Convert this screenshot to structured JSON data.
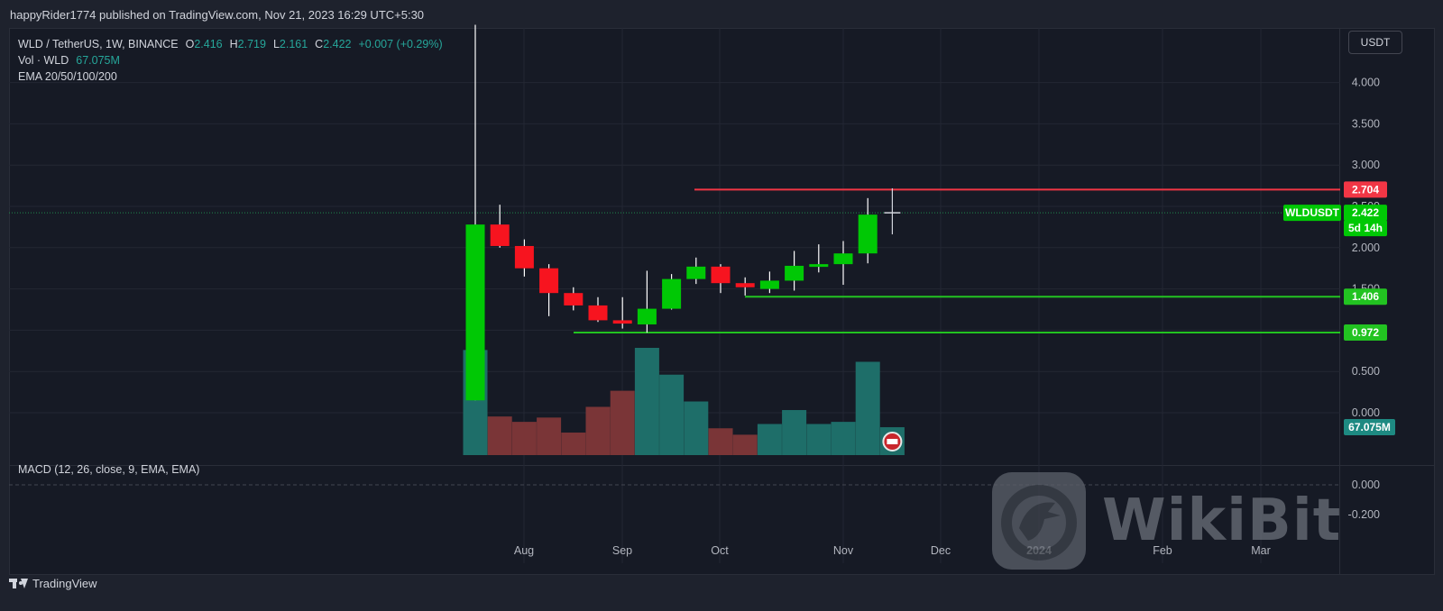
{
  "header": {
    "publish_line": "happyRider1774 published on TradingView.com, Nov 21, 2023 16:29 UTC+5:30"
  },
  "legend": {
    "symbol": "WLD / TetherUS, 1W, BINANCE",
    "o_label": "O",
    "o_value": "2.416",
    "h_label": "H",
    "h_value": "2.719",
    "l_label": "L",
    "l_value": "2.161",
    "c_label": "C",
    "c_value": "2.422",
    "change": "+0.007 (+0.29%)",
    "vol_label": "Vol · WLD",
    "vol_value": "67.075M",
    "ema_label": "EMA 20/50/100/200"
  },
  "macd_legend": "MACD (12, 26, close, 9, EMA, EMA)",
  "price_scale": {
    "currency_button": "USDT",
    "ticks": [
      "4.000",
      "3.500",
      "3.000",
      "2.500",
      "2.000",
      "1.500",
      "1.000",
      "0.500",
      "0.000"
    ],
    "macd_ticks": [
      "0.000",
      "-0.200"
    ]
  },
  "price_tags": {
    "resistance": "2.704",
    "last_symbol": "WLDUSDT",
    "last_price": "2.422",
    "countdown": "5d 14h",
    "support_1": "1.406",
    "support_2": "0.972",
    "volume": "67.075M"
  },
  "colors": {
    "up": "#00c805",
    "down": "#f7141f",
    "vol_up": "#1e6e69",
    "vol_down": "#7a3537",
    "resistance_line": "#f23645",
    "support_line": "#22c321",
    "background": "#161a25"
  },
  "time_axis": [
    "Aug",
    "Sep",
    "Oct",
    "Nov",
    "Dec",
    "2024",
    "Feb",
    "Mar"
  ],
  "footer": {
    "brand": "TradingView"
  },
  "watermark": {
    "text": "WikiBit"
  },
  "chart_data": {
    "type": "candlestick",
    "symbol": "WLD / TetherUS",
    "interval": "1W",
    "exchange": "BINANCE",
    "candles": [
      {
        "o": 0.15,
        "h": 4.7,
        "l": 0.15,
        "c": 2.28
      },
      {
        "o": 2.28,
        "h": 2.52,
        "l": 2.0,
        "c": 2.02
      },
      {
        "o": 2.02,
        "h": 2.1,
        "l": 1.65,
        "c": 1.75
      },
      {
        "o": 1.75,
        "h": 1.8,
        "l": 1.17,
        "c": 1.45
      },
      {
        "o": 1.45,
        "h": 1.52,
        "l": 1.24,
        "c": 1.3
      },
      {
        "o": 1.3,
        "h": 1.4,
        "l": 1.1,
        "c": 1.12
      },
      {
        "o": 1.12,
        "h": 1.4,
        "l": 1.02,
        "c": 1.08
      },
      {
        "o": 1.07,
        "h": 1.72,
        "l": 0.97,
        "c": 1.26
      },
      {
        "o": 1.26,
        "h": 1.68,
        "l": 1.25,
        "c": 1.62
      },
      {
        "o": 1.62,
        "h": 1.88,
        "l": 1.56,
        "c": 1.77
      },
      {
        "o": 1.77,
        "h": 1.8,
        "l": 1.45,
        "c": 1.57
      },
      {
        "o": 1.57,
        "h": 1.64,
        "l": 1.42,
        "c": 1.52
      },
      {
        "o": 1.5,
        "h": 1.71,
        "l": 1.45,
        "c": 1.6
      },
      {
        "o": 1.6,
        "h": 1.96,
        "l": 1.48,
        "c": 1.78
      },
      {
        "o": 1.78,
        "h": 2.04,
        "l": 1.7,
        "c": 1.8
      },
      {
        "o": 1.8,
        "h": 2.08,
        "l": 1.55,
        "c": 1.93
      },
      {
        "o": 1.93,
        "h": 2.6,
        "l": 1.81,
        "c": 2.4
      },
      {
        "o": 2.416,
        "h": 2.719,
        "l": 2.161,
        "c": 2.422
      }
    ],
    "volume_direction": [
      "up",
      "down",
      "down",
      "down",
      "down",
      "down",
      "down",
      "up",
      "up",
      "up",
      "down",
      "down",
      "up",
      "up",
      "up",
      "up",
      "up",
      "up"
    ],
    "volume_relative": [
      0.98,
      0.36,
      0.31,
      0.35,
      0.21,
      0.45,
      0.6,
      1.0,
      0.75,
      0.5,
      0.25,
      0.19,
      0.29,
      0.42,
      0.29,
      0.31,
      0.87,
      0.26
    ],
    "last_volume": "67.075M",
    "horizontal_levels": [
      {
        "price": 2.704,
        "color": "red"
      },
      {
        "price": 1.406,
        "color": "green"
      },
      {
        "price": 0.972,
        "color": "green"
      }
    ],
    "last_price": 2.422,
    "y_ticks": [
      4.0,
      3.5,
      3.0,
      2.5,
      2.0,
      1.5,
      1.0,
      0.5,
      0.0
    ],
    "ylim": [
      -0.5,
      4.75
    ],
    "x_labels": [
      "Aug",
      "Sep",
      "Oct",
      "Nov",
      "Dec",
      "2024",
      "Feb",
      "Mar"
    ],
    "macd_ticks": [
      0.0,
      -0.2
    ],
    "grid": true
  }
}
